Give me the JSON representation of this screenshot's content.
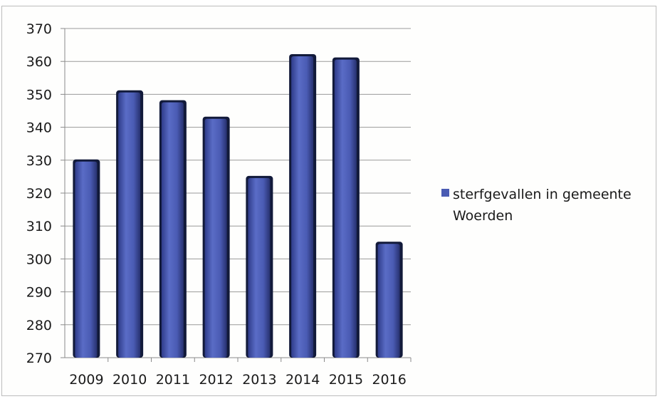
{
  "chart_data": {
    "type": "bar",
    "categories": [
      "2009",
      "2010",
      "2011",
      "2012",
      "2013",
      "2014",
      "2015",
      "2016"
    ],
    "series": [
      {
        "name": "sterfgevallen in gemeente Woerden",
        "values": [
          330,
          351,
          348,
          343,
          325,
          362,
          361,
          305
        ]
      }
    ],
    "legend_lines": [
      "sterfgevallen in gemeente",
      "Woerden"
    ],
    "ylim": [
      270,
      370
    ],
    "yticks": [
      270,
      280,
      290,
      300,
      310,
      320,
      330,
      340,
      350,
      360,
      370
    ],
    "grid": true,
    "legend_position": "right",
    "bar_color": "#4a5bb3",
    "bar_edge_color": "#121a3a"
  }
}
